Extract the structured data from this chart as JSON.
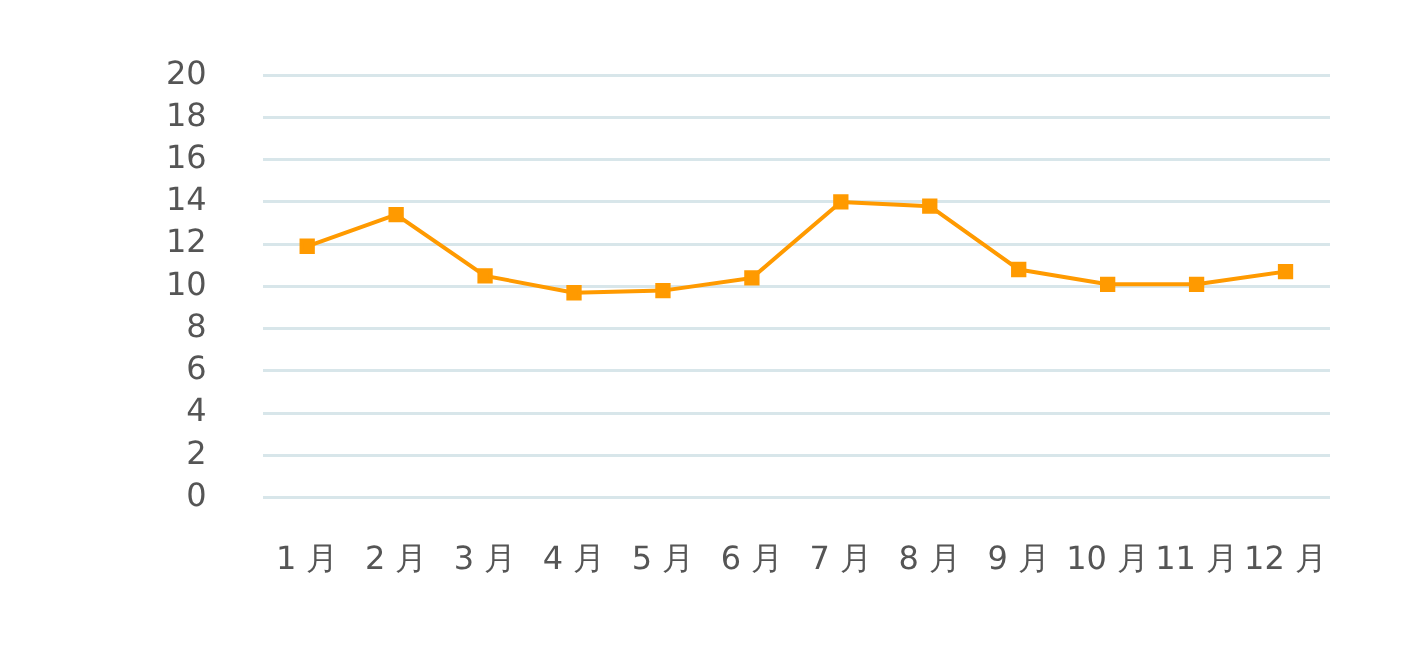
{
  "chart_data": {
    "type": "line",
    "categories": [
      "1 月",
      "2 月",
      "3 月",
      "4 月",
      "5 月",
      "6 月",
      "7 月",
      "8 月",
      "9 月",
      "10 月",
      "11 月",
      "12 月"
    ],
    "series": [
      {
        "color": "#ff9a00",
        "values": [
          11.9,
          13.4,
          10.5,
          9.7,
          9.8,
          10.4,
          14.0,
          13.8,
          10.8,
          10.1,
          10.1,
          10.7
        ]
      }
    ],
    "ylim": [
      0,
      20
    ],
    "yticks": [
      0,
      2,
      4,
      6,
      8,
      10,
      12,
      14,
      16,
      18,
      20
    ],
    "grid": "y",
    "legend": false,
    "marker": "square",
    "line_style": "solid"
  }
}
